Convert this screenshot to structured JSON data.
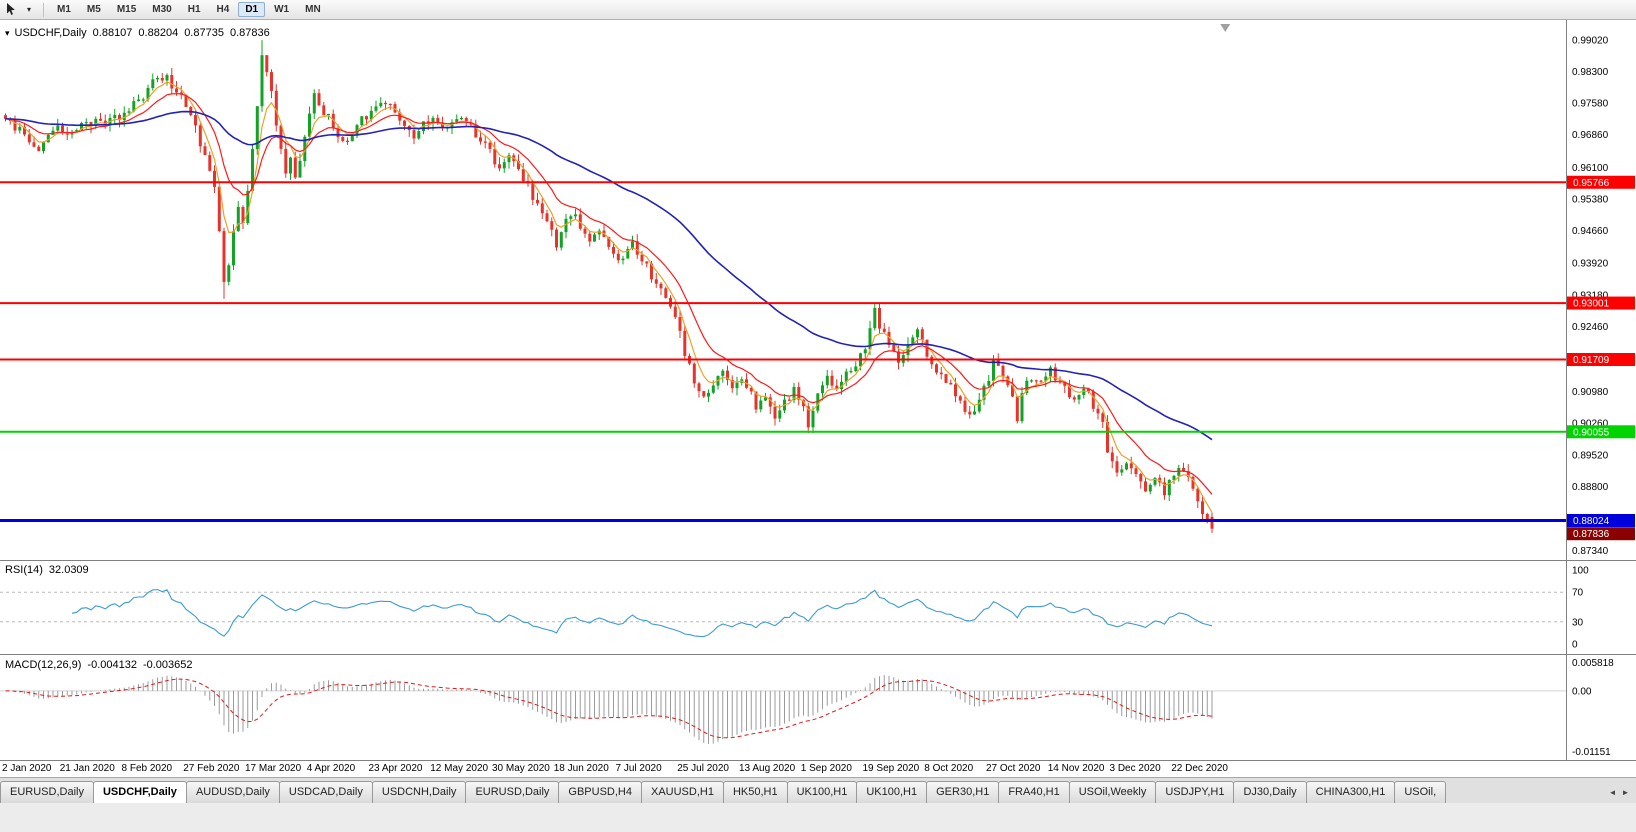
{
  "toolbar": {
    "timeframes": [
      {
        "label": "M1",
        "active": false
      },
      {
        "label": "M5",
        "active": false
      },
      {
        "label": "M15",
        "active": false
      },
      {
        "label": "M30",
        "active": false
      },
      {
        "label": "H1",
        "active": false
      },
      {
        "label": "H4",
        "active": false
      },
      {
        "label": "D1",
        "active": true
      },
      {
        "label": "W1",
        "active": false
      },
      {
        "label": "MN",
        "active": false
      }
    ]
  },
  "chart": {
    "symbol": "USDCHF,Daily",
    "open": "0.88107",
    "high": "0.88204",
    "low": "0.87735",
    "close": "0.87836"
  },
  "rsi": {
    "label": "RSI(14)",
    "value": "32.0309",
    "axis_labels": [
      "100",
      "70",
      "30",
      "0"
    ],
    "levels": [
      70,
      30
    ]
  },
  "macd": {
    "label": "MACD(12,26,9)",
    "value_macd": "-0.004132",
    "value_signal": "-0.003652",
    "axis_top": "0.005818",
    "axis_zero": "0.00",
    "axis_bottom": "-0.01151"
  },
  "tabs": [
    {
      "label": "EURUSD,Daily",
      "active": false
    },
    {
      "label": "USDCHF,Daily",
      "active": true
    },
    {
      "label": "AUDUSD,Daily",
      "active": false
    },
    {
      "label": "USDCAD,Daily",
      "active": false
    },
    {
      "label": "USDCNH,Daily",
      "active": false
    },
    {
      "label": "EURUSD,Daily",
      "active": false
    },
    {
      "label": "GBPUSD,H4",
      "active": false
    },
    {
      "label": "XAUUSD,H1",
      "active": false
    },
    {
      "label": "HK50,H1",
      "active": false
    },
    {
      "label": "UK100,H1",
      "active": false
    },
    {
      "label": "UK100,H1",
      "active": false
    },
    {
      "label": "GER30,H1",
      "active": false
    },
    {
      "label": "FRA40,H1",
      "active": false
    },
    {
      "label": "USOil,Weekly",
      "active": false
    },
    {
      "label": "USDJPY,H1",
      "active": false
    },
    {
      "label": "DJ30,Daily",
      "active": false
    },
    {
      "label": "CHINA300,H1",
      "active": false
    },
    {
      "label": "USOil,",
      "active": false
    }
  ],
  "chart_data": {
    "type": "candlestick",
    "symbol": "USDCHF",
    "timeframe": "D1",
    "candle_count": 255,
    "last_ohlc": {
      "open": 0.88107,
      "high": 0.88204,
      "low": 0.87735,
      "close": 0.87836
    },
    "price_axis": {
      "top": 0.9948,
      "bottom": 0.8712,
      "labels": [
        "0.99020",
        "0.98300",
        "0.97580",
        "0.96860",
        "0.96100",
        "0.95380",
        "0.94660",
        "0.93920",
        "0.93180",
        "0.92460",
        "0.91740",
        "0.90980",
        "0.90260",
        "0.89520",
        "0.88800",
        "0.88080",
        "0.87340"
      ]
    },
    "colors": {
      "up": "#12a326",
      "down": "#e5342c",
      "ma_fast": "#eda128",
      "ma_mid": "#ff1a1a",
      "ma_slow": "#2222bb",
      "rsi": "#3d9bd5",
      "macd_hist": "#9b9b9b",
      "macd_signal": "#e01818",
      "level_dashed": "#bcbcbc",
      "axis_line": "#808080"
    },
    "moving_averages": [
      {
        "period": 5,
        "key": "ma_fast"
      },
      {
        "period": 13,
        "key": "ma_mid"
      },
      {
        "period": 55,
        "key": "ma_slow"
      }
    ],
    "hlines": [
      {
        "label": "0.95766",
        "value": 0.95766,
        "color": "#ff0000",
        "width": 2
      },
      {
        "label": "0.93001",
        "value": 0.93001,
        "color": "#ff0000",
        "width": 2
      },
      {
        "label": "0.91709",
        "value": 0.91709,
        "color": "#ff0000",
        "width": 2
      },
      {
        "label": "0.90055",
        "value": 0.90055,
        "color": "#00d400",
        "width": 2
      },
      {
        "label": "0.88024",
        "value": 0.88024,
        "color": "#0000dd",
        "width": 3
      }
    ],
    "current_price": {
      "label": "0.87836",
      "value": 0.87836,
      "color": "#8b0000"
    },
    "rsi": {
      "period": 14,
      "current": 32.0309
    },
    "macd": {
      "fast": 12,
      "slow": 26,
      "signal_period": 9,
      "current_macd": -0.004132,
      "current_signal": -0.003652,
      "range_top": 0.005818,
      "range_bottom": -0.01151
    },
    "date_step": 13,
    "date_labels": [
      "2 Jan 2020",
      "21 Jan 2020",
      "8 Feb 2020",
      "27 Feb 2020",
      "17 Mar 2020",
      "4 Apr 2020",
      "23 Apr 2020",
      "12 May 2020",
      "30 May 2020",
      "18 Jun 2020",
      "7 Jul 2020",
      "25 Jul 2020",
      "13 Aug 2020",
      "1 Sep 2020",
      "19 Sep 2020",
      "8 Oct 2020",
      "27 Oct 2020",
      "14 Nov 2020",
      "3 Dec 2020",
      "22 Dec 2020"
    ],
    "price_path": [
      [
        0,
        0.972
      ],
      [
        3,
        0.97
      ],
      [
        5,
        0.966
      ],
      [
        7,
        0.9645
      ],
      [
        10,
        0.97
      ],
      [
        13,
        0.9685
      ],
      [
        16,
        0.9705
      ],
      [
        19,
        0.9722
      ],
      [
        22,
        0.9712
      ],
      [
        26,
        0.9748
      ],
      [
        29,
        0.9778
      ],
      [
        32,
        0.9826
      ],
      [
        34,
        0.9812
      ],
      [
        36,
        0.9786
      ],
      [
        38,
        0.976
      ],
      [
        40,
        0.97
      ],
      [
        42,
        0.964
      ],
      [
        44,
        0.956
      ],
      [
        45,
        0.947
      ],
      [
        46,
        0.9345
      ],
      [
        47,
        0.939
      ],
      [
        48,
        0.9455
      ],
      [
        49,
        0.952
      ],
      [
        50,
        0.9482
      ],
      [
        51,
        0.9558
      ],
      [
        52,
        0.965
      ],
      [
        53,
        0.9762
      ],
      [
        54,
        0.9862
      ],
      [
        55,
        0.9832
      ],
      [
        56,
        0.9792
      ],
      [
        57,
        0.97
      ],
      [
        58,
        0.9642
      ],
      [
        59,
        0.9602
      ],
      [
        60,
        0.9632
      ],
      [
        61,
        0.9592
      ],
      [
        62,
        0.963
      ],
      [
        63,
        0.968
      ],
      [
        64,
        0.973
      ],
      [
        65,
        0.9772
      ],
      [
        67,
        0.9742
      ],
      [
        69,
        0.9702
      ],
      [
        71,
        0.9665
      ],
      [
        73,
        0.9686
      ],
      [
        75,
        0.9722
      ],
      [
        78,
        0.9752
      ],
      [
        80,
        0.9766
      ],
      [
        82,
        0.9732
      ],
      [
        84,
        0.9702
      ],
      [
        86,
        0.9686
      ],
      [
        88,
        0.9706
      ],
      [
        91,
        0.9722
      ],
      [
        93,
        0.9702
      ],
      [
        95,
        0.973
      ],
      [
        97,
        0.9712
      ],
      [
        99,
        0.9686
      ],
      [
        101,
        0.9656
      ],
      [
        104,
        0.9616
      ],
      [
        106,
        0.9636
      ],
      [
        108,
        0.9602
      ],
      [
        110,
        0.9566
      ],
      [
        112,
        0.9526
      ],
      [
        114,
        0.9486
      ],
      [
        116,
        0.9436
      ],
      [
        117,
        0.9462
      ],
      [
        119,
        0.9502
      ],
      [
        121,
        0.9482
      ],
      [
        123,
        0.9446
      ],
      [
        125,
        0.9472
      ],
      [
        127,
        0.9426
      ],
      [
        130,
        0.9396
      ],
      [
        132,
        0.9432
      ],
      [
        134,
        0.9402
      ],
      [
        136,
        0.9362
      ],
      [
        138,
        0.9326
      ],
      [
        140,
        0.9302
      ],
      [
        142,
        0.9246
      ],
      [
        143,
        0.9186
      ],
      [
        145,
        0.9126
      ],
      [
        147,
        0.9086
      ],
      [
        149,
        0.9122
      ],
      [
        151,
        0.9152
      ],
      [
        153,
        0.9106
      ],
      [
        155,
        0.9132
      ],
      [
        156,
        0.9116
      ],
      [
        158,
        0.9066
      ],
      [
        160,
        0.9092
      ],
      [
        162,
        0.9036
      ],
      [
        164,
        0.9072
      ],
      [
        166,
        0.9102
      ],
      [
        168,
        0.9052
      ],
      [
        169,
        0.9026
      ],
      [
        171,
        0.9082
      ],
      [
        173,
        0.9122
      ],
      [
        175,
        0.9096
      ],
      [
        177,
        0.9132
      ],
      [
        179,
        0.9162
      ],
      [
        181,
        0.9206
      ],
      [
        183,
        0.9288
      ],
      [
        184,
        0.9246
      ],
      [
        186,
        0.9206
      ],
      [
        188,
        0.9166
      ],
      [
        190,
        0.9216
      ],
      [
        192,
        0.9236
      ],
      [
        194,
        0.9186
      ],
      [
        195,
        0.9156
      ],
      [
        197,
        0.9126
      ],
      [
        199,
        0.9106
      ],
      [
        201,
        0.9066
      ],
      [
        203,
        0.9036
      ],
      [
        205,
        0.9082
      ],
      [
        207,
        0.9126
      ],
      [
        208,
        0.9162
      ],
      [
        210,
        0.9142
      ],
      [
        212,
        0.9082
      ],
      [
        213,
        0.9022
      ],
      [
        214,
        0.9092
      ],
      [
        216,
        0.9132
      ],
      [
        218,
        0.9112
      ],
      [
        220,
        0.9142
      ],
      [
        221,
        0.9126
      ],
      [
        223,
        0.9106
      ],
      [
        225,
        0.9082
      ],
      [
        227,
        0.9112
      ],
      [
        229,
        0.9062
      ],
      [
        231,
        0.9022
      ],
      [
        232,
        0.8962
      ],
      [
        233,
        0.8926
      ],
      [
        234,
        0.8906
      ],
      [
        236,
        0.8932
      ],
      [
        238,
        0.8902
      ],
      [
        240,
        0.8876
      ],
      [
        242,
        0.8892
      ],
      [
        244,
        0.8864
      ],
      [
        246,
        0.8912
      ],
      [
        247,
        0.8922
      ],
      [
        249,
        0.8894
      ],
      [
        251,
        0.8856
      ],
      [
        252,
        0.8826
      ],
      [
        253,
        0.8796
      ],
      [
        254,
        0.87836
      ]
    ],
    "wick_overrides": {
      "46": {
        "low": 0.931
      },
      "54": {
        "high": 0.9902
      },
      "183": {
        "high": 0.93
      }
    }
  }
}
